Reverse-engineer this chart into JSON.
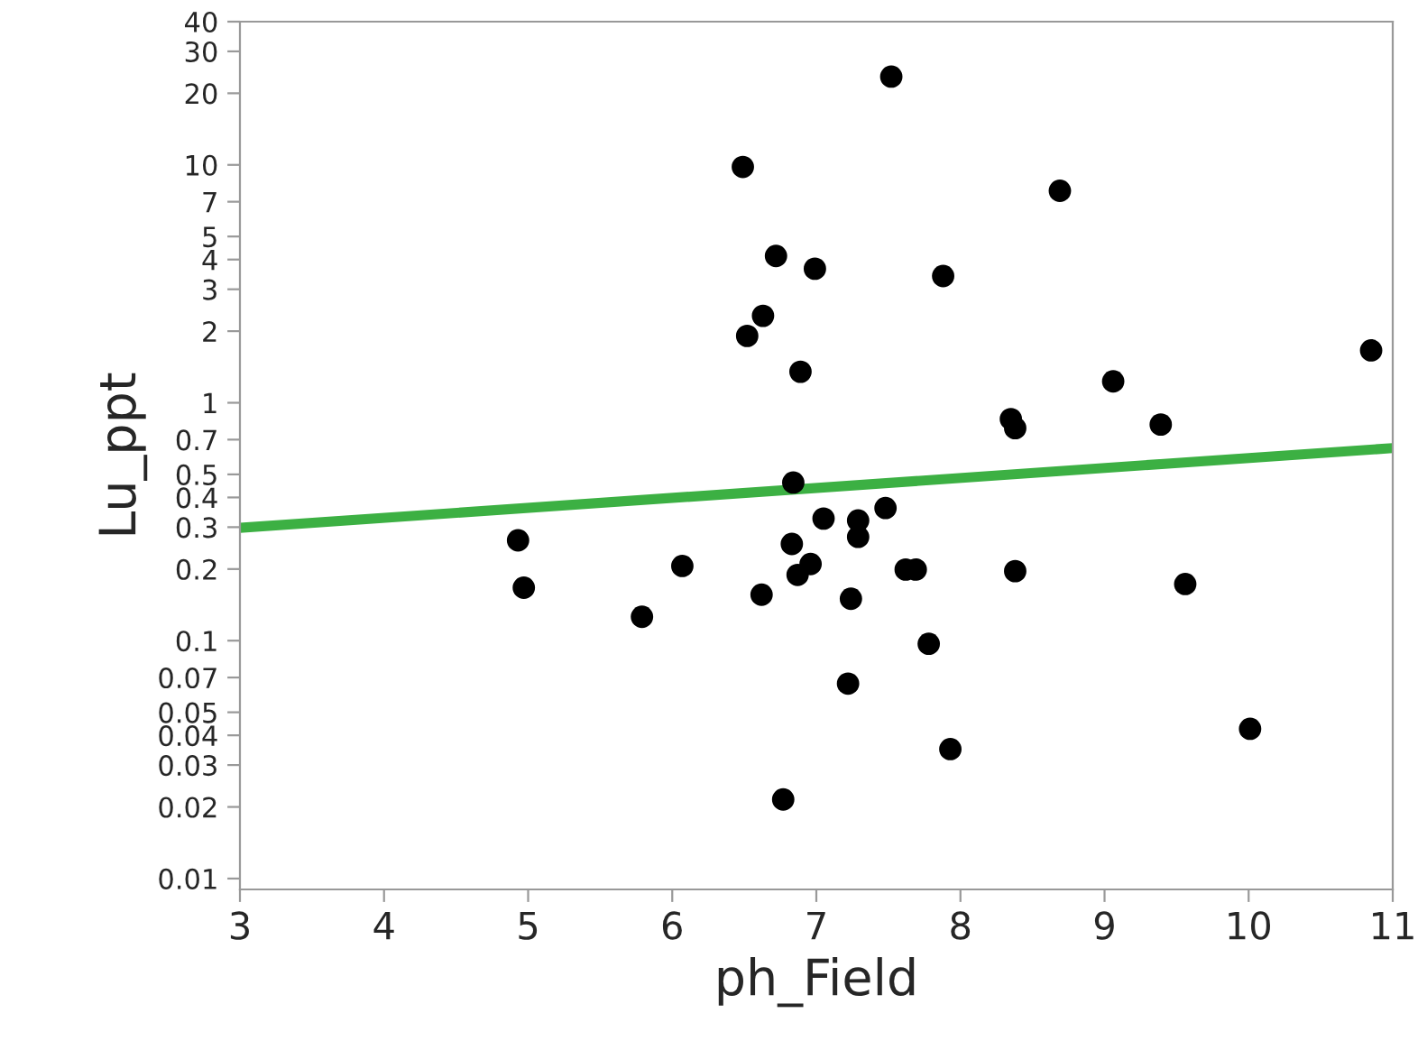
{
  "chart_data": {
    "type": "scatter",
    "xlabel": "ph_Field",
    "ylabel": "Lu_ppt",
    "log": "y",
    "xlim": [
      3,
      11
    ],
    "xticks": [
      3,
      4,
      5,
      6,
      7,
      8,
      9,
      10,
      11
    ],
    "ylim": [
      0.009,
      40
    ],
    "yticks": [
      0.01,
      0.02,
      0.03,
      0.04,
      0.05,
      0.07,
      0.1,
      0.2,
      0.3,
      0.4,
      0.5,
      0.7,
      1,
      2,
      3,
      4,
      5,
      7,
      10,
      20,
      30,
      40
    ],
    "grid": false,
    "legend": false,
    "series": [
      {
        "marker": "circle",
        "color": "#000000",
        "x": [
          4.93,
          4.97,
          5.79,
          6.07,
          6.49,
          6.52,
          6.62,
          6.63,
          6.72,
          6.77,
          6.83,
          6.84,
          6.87,
          6.89,
          6.96,
          6.99,
          7.05,
          7.22,
          7.24,
          7.29,
          7.29,
          7.48,
          7.52,
          7.62,
          7.69,
          7.78,
          7.88,
          7.93,
          8.35,
          8.38,
          8.38,
          8.69,
          9.06,
          9.39,
          9.56,
          10.01,
          10.85
        ],
        "values": [
          0.264,
          0.167,
          0.126,
          0.206,
          9.8,
          1.91,
          0.156,
          2.32,
          4.14,
          0.0215,
          0.255,
          0.462,
          0.189,
          1.35,
          0.21,
          3.66,
          0.326,
          0.066,
          0.15,
          0.32,
          0.273,
          0.361,
          23.5,
          0.199,
          0.199,
          0.097,
          3.41,
          0.035,
          0.854,
          0.782,
          0.196,
          7.78,
          1.23,
          0.81,
          0.173,
          0.0426,
          1.66
        ]
      },
      {
        "type": "line",
        "color": "#3cb043",
        "line_style": "solid",
        "x": [
          3,
          11
        ],
        "values": [
          0.298,
          0.645
        ]
      }
    ]
  }
}
